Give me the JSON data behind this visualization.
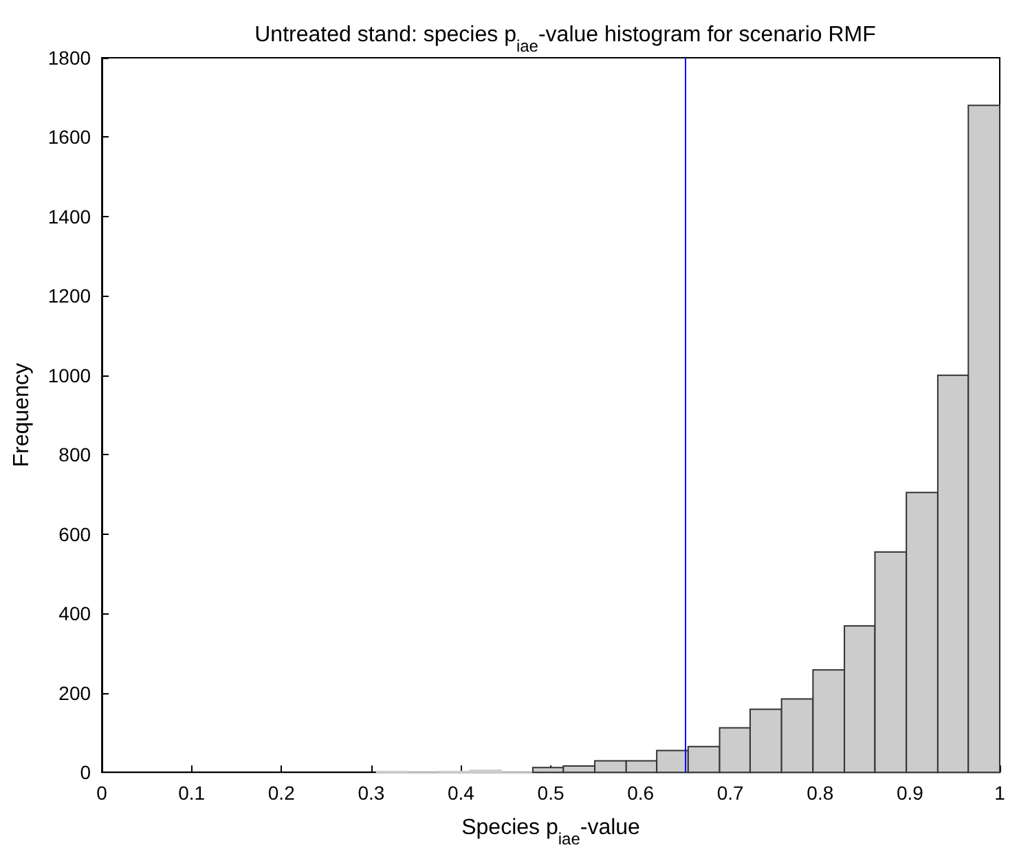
{
  "chart_data": {
    "type": "histogram",
    "title": "Untreated stand: species p$_{iae}$-value histogram for scenario RMF",
    "xlabel": "Species p$_{iae}$-value",
    "ylabel": "Frequency",
    "bins": [
      0.306,
      0.341,
      0.375,
      0.41,
      0.445,
      0.48,
      0.514,
      0.549,
      0.584,
      0.618,
      0.653,
      0.688,
      0.722,
      0.757,
      0.792,
      0.827,
      0.861,
      0.896,
      0.931,
      0.965,
      1.0
    ],
    "values": [
      2,
      0,
      2,
      5,
      0,
      12,
      16,
      29,
      29,
      55,
      65,
      112,
      159,
      185,
      258,
      369,
      555,
      705,
      1000,
      1680
    ],
    "color": "#cccccc",
    "xlim": [
      0,
      1
    ],
    "xticks": [
      0,
      0.1,
      0.2,
      0.3,
      0.4,
      0.5,
      0.6,
      0.7,
      0.8,
      0.9,
      1
    ],
    "ylim": [
      0,
      1800
    ],
    "yticks": [
      0,
      200,
      400,
      600,
      800,
      1000,
      1200,
      1400,
      1600,
      1800
    ],
    "ref_lines": [
      {
        "axis": "x",
        "value": 0.65,
        "color": "#0000ff"
      }
    ],
    "grid": false
  }
}
